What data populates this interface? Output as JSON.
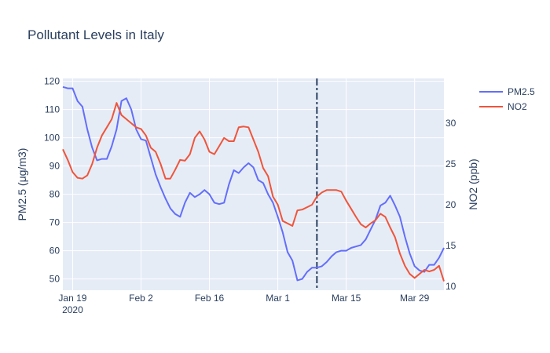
{
  "chart_data": {
    "type": "line",
    "title": "Pollutant Levels in Italy",
    "xlabel": "",
    "y_left_label": "PM2.5 (μg/m3)",
    "y_right_label": "NO2 (ppb)",
    "x_start": "2020-01-17",
    "x_end": "2020-04-04",
    "x_ticks": [
      {
        "date": "2020-01-19",
        "label": "Jan 19",
        "sub": "2020"
      },
      {
        "date": "2020-02-02",
        "label": "Feb 2",
        "sub": ""
      },
      {
        "date": "2020-02-16",
        "label": "Feb 16",
        "sub": ""
      },
      {
        "date": "2020-03-01",
        "label": "Mar 1",
        "sub": ""
      },
      {
        "date": "2020-03-15",
        "label": "Mar 15",
        "sub": ""
      },
      {
        "date": "2020-03-29",
        "label": "Mar 29",
        "sub": ""
      }
    ],
    "y_left_range": [
      46,
      121
    ],
    "y_left_ticks": [
      50,
      60,
      70,
      80,
      90,
      100,
      110,
      120
    ],
    "y_right_range": [
      9.5,
      35.5
    ],
    "y_right_ticks": [
      10,
      15,
      20,
      25,
      30
    ],
    "vline_date": "2020-03-09",
    "grid": true,
    "legend_position": "top-right",
    "series": [
      {
        "name": "PM2.5",
        "axis": "left",
        "color": "#636efa",
        "values": [
          [
            "2020-01-17",
            118
          ],
          [
            "2020-01-18",
            117.5
          ],
          [
            "2020-01-19",
            117.5
          ],
          [
            "2020-01-20",
            113
          ],
          [
            "2020-01-21",
            111
          ],
          [
            "2020-01-22",
            103
          ],
          [
            "2020-01-23",
            96.5
          ],
          [
            "2020-01-24",
            92
          ],
          [
            "2020-01-25",
            92.5
          ],
          [
            "2020-01-26",
            92.5
          ],
          [
            "2020-01-27",
            97
          ],
          [
            "2020-01-28",
            103
          ],
          [
            "2020-01-29",
            113
          ],
          [
            "2020-01-30",
            114
          ],
          [
            "2020-01-31",
            110
          ],
          [
            "2020-02-01",
            103
          ],
          [
            "2020-02-02",
            99.5
          ],
          [
            "2020-02-03",
            99
          ],
          [
            "2020-02-04",
            93
          ],
          [
            "2020-02-05",
            87
          ],
          [
            "2020-02-06",
            82.5
          ],
          [
            "2020-02-07",
            78.5
          ],
          [
            "2020-02-08",
            75
          ],
          [
            "2020-02-09",
            73
          ],
          [
            "2020-02-10",
            72
          ],
          [
            "2020-02-11",
            77
          ],
          [
            "2020-02-12",
            80.5
          ],
          [
            "2020-02-13",
            79
          ],
          [
            "2020-02-14",
            80
          ],
          [
            "2020-02-15",
            81.5
          ],
          [
            "2020-02-16",
            80
          ],
          [
            "2020-02-17",
            77
          ],
          [
            "2020-02-18",
            76.5
          ],
          [
            "2020-02-19",
            77
          ],
          [
            "2020-02-20",
            83.5
          ],
          [
            "2020-02-21",
            88.5
          ],
          [
            "2020-02-22",
            87.5
          ],
          [
            "2020-02-23",
            89.5
          ],
          [
            "2020-02-24",
            91
          ],
          [
            "2020-02-25",
            89.5
          ],
          [
            "2020-02-26",
            85
          ],
          [
            "2020-02-27",
            84
          ],
          [
            "2020-02-28",
            80
          ],
          [
            "2020-02-29",
            77
          ],
          [
            "2020-03-01",
            72
          ],
          [
            "2020-03-02",
            66.5
          ],
          [
            "2020-03-03",
            59.5
          ],
          [
            "2020-03-04",
            56.5
          ],
          [
            "2020-03-05",
            49.5
          ],
          [
            "2020-03-06",
            50
          ],
          [
            "2020-03-07",
            52.5
          ],
          [
            "2020-03-08",
            54
          ],
          [
            "2020-03-09",
            54
          ],
          [
            "2020-03-10",
            54.5
          ],
          [
            "2020-03-11",
            56
          ],
          [
            "2020-03-12",
            58
          ],
          [
            "2020-03-13",
            59.5
          ],
          [
            "2020-03-14",
            60
          ],
          [
            "2020-03-15",
            60
          ],
          [
            "2020-03-16",
            61
          ],
          [
            "2020-03-17",
            61.5
          ],
          [
            "2020-03-18",
            62
          ],
          [
            "2020-03-19",
            64
          ],
          [
            "2020-03-20",
            67.5
          ],
          [
            "2020-03-21",
            71
          ],
          [
            "2020-03-22",
            76
          ],
          [
            "2020-03-23",
            77
          ],
          [
            "2020-03-24",
            79.5
          ],
          [
            "2020-03-25",
            76
          ],
          [
            "2020-03-26",
            72
          ],
          [
            "2020-03-27",
            65
          ],
          [
            "2020-03-28",
            59
          ],
          [
            "2020-03-29",
            54.5
          ],
          [
            "2020-03-30",
            53
          ],
          [
            "2020-03-31",
            52.5
          ],
          [
            "2020-04-01",
            55
          ],
          [
            "2020-04-02",
            55
          ],
          [
            "2020-04-03",
            57.5
          ],
          [
            "2020-04-04",
            61
          ]
        ]
      },
      {
        "name": "NO2",
        "axis": "right",
        "color": "#ef553b",
        "values": [
          [
            "2020-01-17",
            26.8
          ],
          [
            "2020-01-18",
            25.5
          ],
          [
            "2020-01-19",
            24
          ],
          [
            "2020-01-20",
            23.3
          ],
          [
            "2020-01-21",
            23.2
          ],
          [
            "2020-01-22",
            23.6
          ],
          [
            "2020-01-23",
            25
          ],
          [
            "2020-01-24",
            27
          ],
          [
            "2020-01-25",
            28.5
          ],
          [
            "2020-01-26",
            29.5
          ],
          [
            "2020-01-27",
            30.5
          ],
          [
            "2020-01-28",
            32.5
          ],
          [
            "2020-01-29",
            31
          ],
          [
            "2020-01-30",
            30.5
          ],
          [
            "2020-01-31",
            30
          ],
          [
            "2020-02-01",
            29.5
          ],
          [
            "2020-02-02",
            29.3
          ],
          [
            "2020-02-03",
            28.5
          ],
          [
            "2020-02-04",
            27
          ],
          [
            "2020-02-05",
            26.5
          ],
          [
            "2020-02-06",
            25
          ],
          [
            "2020-02-07",
            23.2
          ],
          [
            "2020-02-08",
            23.2
          ],
          [
            "2020-02-09",
            24.3
          ],
          [
            "2020-02-10",
            25.5
          ],
          [
            "2020-02-11",
            25.4
          ],
          [
            "2020-02-12",
            26.2
          ],
          [
            "2020-02-13",
            28.2
          ],
          [
            "2020-02-14",
            29
          ],
          [
            "2020-02-15",
            28
          ],
          [
            "2020-02-16",
            26.5
          ],
          [
            "2020-02-17",
            26.2
          ],
          [
            "2020-02-18",
            27.2
          ],
          [
            "2020-02-19",
            28.2
          ],
          [
            "2020-02-20",
            27.8
          ],
          [
            "2020-02-21",
            27.8
          ],
          [
            "2020-02-22",
            29.5
          ],
          [
            "2020-02-23",
            29.6
          ],
          [
            "2020-02-24",
            29.5
          ],
          [
            "2020-02-25",
            28
          ],
          [
            "2020-02-26",
            26.5
          ],
          [
            "2020-02-27",
            24.5
          ],
          [
            "2020-02-28",
            23.5
          ],
          [
            "2020-02-29",
            21
          ],
          [
            "2020-03-01",
            20
          ],
          [
            "2020-03-02",
            18
          ],
          [
            "2020-03-03",
            17.7
          ],
          [
            "2020-03-04",
            17.4
          ],
          [
            "2020-03-05",
            19.3
          ],
          [
            "2020-03-06",
            19.4
          ],
          [
            "2020-03-07",
            19.7
          ],
          [
            "2020-03-08",
            20
          ],
          [
            "2020-03-09",
            21
          ],
          [
            "2020-03-10",
            21.5
          ],
          [
            "2020-03-11",
            21.8
          ],
          [
            "2020-03-12",
            21.8
          ],
          [
            "2020-03-13",
            21.8
          ],
          [
            "2020-03-14",
            21.6
          ],
          [
            "2020-03-15",
            20.5
          ],
          [
            "2020-03-16",
            19.5
          ],
          [
            "2020-03-17",
            18.5
          ],
          [
            "2020-03-18",
            17.6
          ],
          [
            "2020-03-19",
            17.2
          ],
          [
            "2020-03-20",
            17.7
          ],
          [
            "2020-03-21",
            18.1
          ],
          [
            "2020-03-22",
            18.9
          ],
          [
            "2020-03-23",
            18.5
          ],
          [
            "2020-03-24",
            17.2
          ],
          [
            "2020-03-25",
            16
          ],
          [
            "2020-03-26",
            14
          ],
          [
            "2020-03-27",
            12.5
          ],
          [
            "2020-03-28",
            11.5
          ],
          [
            "2020-03-29",
            11
          ],
          [
            "2020-03-30",
            11.5
          ],
          [
            "2020-03-31",
            12
          ],
          [
            "2020-04-01",
            11.8
          ],
          [
            "2020-04-02",
            12
          ],
          [
            "2020-04-03",
            12.5
          ],
          [
            "2020-04-04",
            10.6
          ]
        ]
      }
    ]
  }
}
